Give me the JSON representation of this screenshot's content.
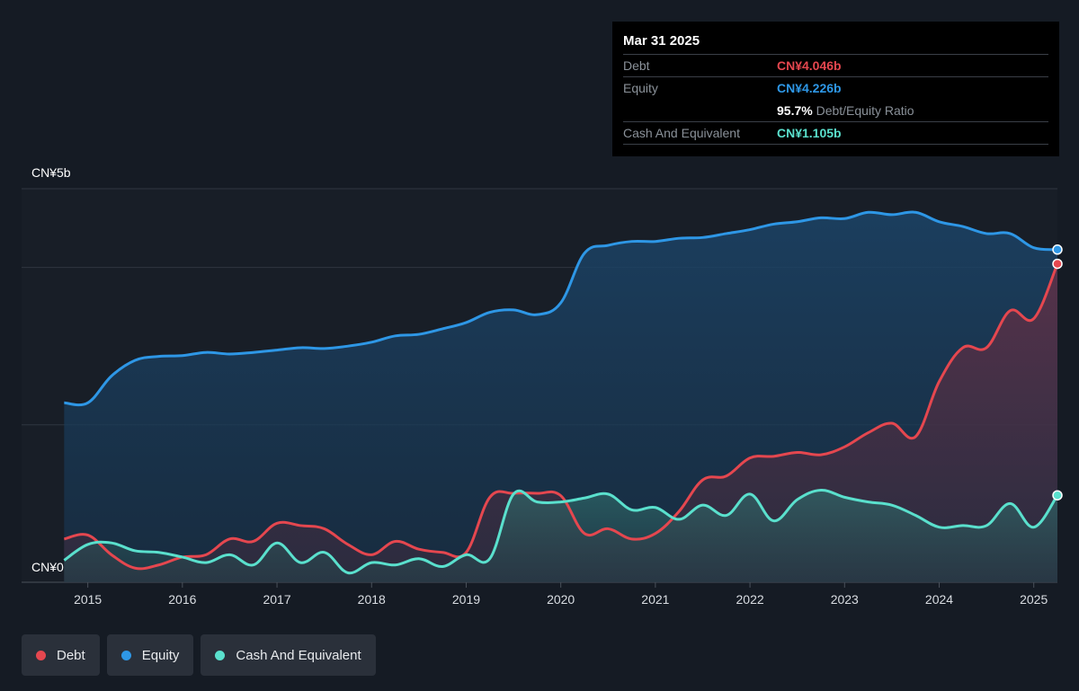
{
  "tooltip": {
    "date": "Mar 31 2025",
    "debt_label": "Debt",
    "debt_value": "CN¥4.046b",
    "equity_label": "Equity",
    "equity_value": "CN¥4.226b",
    "ratio_value": "95.7%",
    "ratio_label": "Debt/Equity Ratio",
    "cash_label": "Cash And Equivalent",
    "cash_value": "CN¥1.105b"
  },
  "legend": [
    {
      "label": "Debt",
      "color": "#e5474f"
    },
    {
      "label": "Equity",
      "color": "#2e97e6"
    },
    {
      "label": "Cash And Equivalent",
      "color": "#5ae0cd"
    }
  ],
  "colors": {
    "debt": "#e5474f",
    "equity": "#2e97e6",
    "cash": "#5ae0cd",
    "background": "#151b24"
  },
  "chart_data": {
    "type": "area",
    "title": "",
    "xlabel": "",
    "ylabel": "",
    "y_tick_labels": [
      "CN¥0",
      "CN¥5b"
    ],
    "ylim": [
      0,
      5
    ],
    "x_tick_labels": [
      "2015",
      "2016",
      "2017",
      "2018",
      "2019",
      "2020",
      "2021",
      "2022",
      "2023",
      "2024",
      "2025"
    ],
    "xlim": [
      2014.75,
      2025.25
    ],
    "grid": true,
    "series": [
      {
        "name": "Debt",
        "color": "#e5474f",
        "x": [
          2014.75,
          2015.0,
          2015.25,
          2015.5,
          2015.75,
          2016.0,
          2016.25,
          2016.5,
          2016.75,
          2017.0,
          2017.25,
          2017.5,
          2017.75,
          2018.0,
          2018.25,
          2018.5,
          2018.75,
          2019.0,
          2019.25,
          2019.5,
          2019.75,
          2020.0,
          2020.25,
          2020.5,
          2020.75,
          2021.0,
          2021.25,
          2021.5,
          2021.75,
          2022.0,
          2022.25,
          2022.5,
          2022.75,
          2023.0,
          2023.25,
          2023.5,
          2023.75,
          2024.0,
          2024.25,
          2024.5,
          2024.75,
          2025.0,
          2025.25
        ],
        "values": [
          0.55,
          0.6,
          0.35,
          0.18,
          0.22,
          0.32,
          0.35,
          0.55,
          0.52,
          0.75,
          0.72,
          0.68,
          0.48,
          0.35,
          0.52,
          0.42,
          0.38,
          0.38,
          1.08,
          1.13,
          1.13,
          1.1,
          0.62,
          0.68,
          0.55,
          0.62,
          0.9,
          1.3,
          1.35,
          1.58,
          1.6,
          1.65,
          1.62,
          1.72,
          1.9,
          2.02,
          1.85,
          2.55,
          2.98,
          2.98,
          3.45,
          3.35,
          4.046
        ]
      },
      {
        "name": "Equity",
        "color": "#2e97e6",
        "x": [
          2014.75,
          2015.0,
          2015.25,
          2015.5,
          2015.75,
          2016.0,
          2016.25,
          2016.5,
          2016.75,
          2017.0,
          2017.25,
          2017.5,
          2017.75,
          2018.0,
          2018.25,
          2018.5,
          2018.75,
          2019.0,
          2019.25,
          2019.5,
          2019.75,
          2020.0,
          2020.25,
          2020.5,
          2020.75,
          2021.0,
          2021.25,
          2021.5,
          2021.75,
          2022.0,
          2022.25,
          2022.5,
          2022.75,
          2023.0,
          2023.25,
          2023.5,
          2023.75,
          2024.0,
          2024.25,
          2024.5,
          2024.75,
          2025.0,
          2025.25
        ],
        "values": [
          2.28,
          2.28,
          2.62,
          2.82,
          2.87,
          2.88,
          2.92,
          2.9,
          2.92,
          2.95,
          2.98,
          2.97,
          3.0,
          3.05,
          3.13,
          3.15,
          3.22,
          3.3,
          3.43,
          3.46,
          3.4,
          3.55,
          4.18,
          4.28,
          4.33,
          4.33,
          4.37,
          4.38,
          4.43,
          4.48,
          4.55,
          4.58,
          4.63,
          4.62,
          4.7,
          4.67,
          4.7,
          4.58,
          4.52,
          4.43,
          4.43,
          4.25,
          4.226
        ]
      },
      {
        "name": "Cash And Equivalent",
        "color": "#5ae0cd",
        "x": [
          2014.75,
          2015.0,
          2015.25,
          2015.5,
          2015.75,
          2016.0,
          2016.25,
          2016.5,
          2016.75,
          2017.0,
          2017.25,
          2017.5,
          2017.75,
          2018.0,
          2018.25,
          2018.5,
          2018.75,
          2019.0,
          2019.25,
          2019.5,
          2019.75,
          2020.0,
          2020.25,
          2020.5,
          2020.75,
          2021.0,
          2021.25,
          2021.5,
          2021.75,
          2022.0,
          2022.25,
          2022.5,
          2022.75,
          2023.0,
          2023.25,
          2023.5,
          2023.75,
          2024.0,
          2024.25,
          2024.5,
          2024.75,
          2025.0,
          2025.25
        ],
        "values": [
          0.28,
          0.48,
          0.5,
          0.4,
          0.38,
          0.32,
          0.25,
          0.35,
          0.22,
          0.5,
          0.25,
          0.38,
          0.12,
          0.25,
          0.22,
          0.3,
          0.2,
          0.35,
          0.3,
          1.12,
          1.02,
          1.02,
          1.07,
          1.12,
          0.92,
          0.95,
          0.8,
          0.98,
          0.85,
          1.12,
          0.78,
          1.05,
          1.17,
          1.08,
          1.02,
          0.98,
          0.85,
          0.7,
          0.72,
          0.72,
          1.0,
          0.7,
          1.105
        ]
      }
    ]
  }
}
